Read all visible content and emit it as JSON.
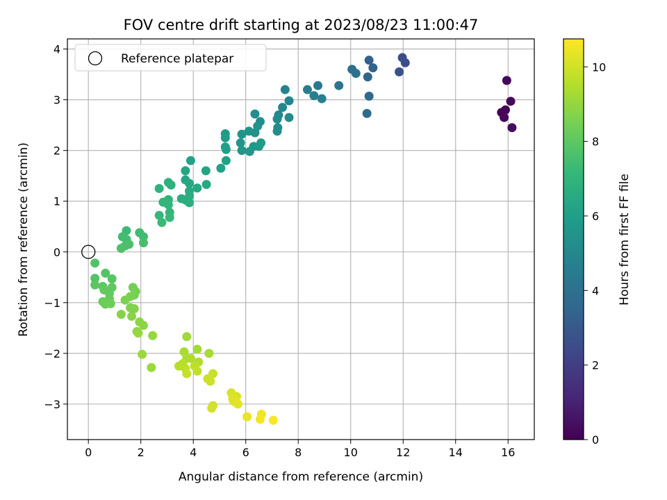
{
  "chart_data": {
    "type": "scatter",
    "title": "FOV centre drift starting at 2023/08/23 11:00:47",
    "xlabel": "Angular distance from reference (arcmin)",
    "ylabel": "Rotation from reference (arcmin)",
    "xlim": [
      -0.8,
      17.0
    ],
    "ylim": [
      -3.7,
      4.2
    ],
    "xticks": [
      0,
      2,
      4,
      6,
      8,
      10,
      12,
      14,
      16
    ],
    "yticks": [
      -3,
      -2,
      -1,
      0,
      1,
      2,
      3,
      4
    ],
    "grid": true,
    "legend": {
      "label": "Reference platepar",
      "placement": "top-left"
    },
    "reference_point": {
      "x": 0,
      "y": 0
    },
    "colorbar": {
      "label": "Hours from first FF file",
      "range": [
        0,
        10.75
      ],
      "ticks": [
        0,
        2,
        4,
        6,
        8,
        10
      ],
      "colormap": "viridis",
      "colors": [
        "#440154",
        "#482878",
        "#3e4989",
        "#31688e",
        "#26828e",
        "#1f9e89",
        "#35b779",
        "#6ece58",
        "#b5de2b",
        "#fde725"
      ]
    },
    "points": [
      {
        "x": 15.75,
        "y": 2.75,
        "c": 0.1
      },
      {
        "x": 15.9,
        "y": 2.8,
        "c": 0.15
      },
      {
        "x": 15.85,
        "y": 2.65,
        "c": 0.2
      },
      {
        "x": 15.95,
        "y": 3.38,
        "c": 0.25
      },
      {
        "x": 16.1,
        "y": 2.97,
        "c": 0.3
      },
      {
        "x": 16.15,
        "y": 2.45,
        "c": 0.35
      },
      {
        "x": 11.97,
        "y": 3.83,
        "c": 2.5
      },
      {
        "x": 12.08,
        "y": 3.73,
        "c": 2.6
      },
      {
        "x": 11.85,
        "y": 3.55,
        "c": 2.7
      },
      {
        "x": 10.7,
        "y": 3.78,
        "c": 3.3
      },
      {
        "x": 10.85,
        "y": 3.63,
        "c": 3.4
      },
      {
        "x": 10.65,
        "y": 3.45,
        "c": 3.5
      },
      {
        "x": 10.7,
        "y": 3.07,
        "c": 3.6
      },
      {
        "x": 10.62,
        "y": 2.73,
        "c": 3.7
      },
      {
        "x": 10.05,
        "y": 3.6,
        "c": 3.9
      },
      {
        "x": 10.2,
        "y": 3.52,
        "c": 4.0
      },
      {
        "x": 9.55,
        "y": 3.28,
        "c": 4.2
      },
      {
        "x": 8.75,
        "y": 3.28,
        "c": 4.4
      },
      {
        "x": 8.35,
        "y": 3.2,
        "c": 4.5
      },
      {
        "x": 8.6,
        "y": 3.08,
        "c": 4.6
      },
      {
        "x": 8.9,
        "y": 3.02,
        "c": 4.7
      },
      {
        "x": 7.5,
        "y": 3.2,
        "c": 4.8
      },
      {
        "x": 7.65,
        "y": 2.98,
        "c": 4.9
      },
      {
        "x": 7.4,
        "y": 2.85,
        "c": 5.0
      },
      {
        "x": 7.25,
        "y": 2.7,
        "c": 5.05
      },
      {
        "x": 7.2,
        "y": 2.62,
        "c": 5.1
      },
      {
        "x": 7.65,
        "y": 2.65,
        "c": 5.15
      },
      {
        "x": 7.22,
        "y": 2.45,
        "c": 5.2
      },
      {
        "x": 7.2,
        "y": 2.38,
        "c": 5.25
      },
      {
        "x": 6.35,
        "y": 2.72,
        "c": 5.3
      },
      {
        "x": 6.55,
        "y": 2.57,
        "c": 5.35
      },
      {
        "x": 6.45,
        "y": 2.48,
        "c": 5.4
      },
      {
        "x": 6.35,
        "y": 2.35,
        "c": 5.45
      },
      {
        "x": 6.12,
        "y": 2.38,
        "c": 5.5
      },
      {
        "x": 5.85,
        "y": 2.32,
        "c": 5.55
      },
      {
        "x": 5.8,
        "y": 2.15,
        "c": 5.6
      },
      {
        "x": 5.85,
        "y": 2.0,
        "c": 5.65
      },
      {
        "x": 6.15,
        "y": 1.98,
        "c": 5.7
      },
      {
        "x": 6.3,
        "y": 2.08,
        "c": 5.75
      },
      {
        "x": 6.5,
        "y": 2.08,
        "c": 5.8
      },
      {
        "x": 6.58,
        "y": 2.15,
        "c": 5.85
      },
      {
        "x": 5.22,
        "y": 2.33,
        "c": 5.9
      },
      {
        "x": 5.22,
        "y": 2.25,
        "c": 5.95
      },
      {
        "x": 5.22,
        "y": 2.07,
        "c": 6.0
      },
      {
        "x": 5.25,
        "y": 2.02,
        "c": 6.05
      },
      {
        "x": 5.25,
        "y": 1.8,
        "c": 6.1
      },
      {
        "x": 5.05,
        "y": 1.65,
        "c": 6.15
      },
      {
        "x": 3.9,
        "y": 1.8,
        "c": 6.2
      },
      {
        "x": 4.48,
        "y": 1.6,
        "c": 6.25
      },
      {
        "x": 3.7,
        "y": 1.6,
        "c": 6.3
      },
      {
        "x": 3.7,
        "y": 1.42,
        "c": 6.35
      },
      {
        "x": 3.85,
        "y": 1.35,
        "c": 6.4
      },
      {
        "x": 4.5,
        "y": 1.33,
        "c": 6.45
      },
      {
        "x": 4.15,
        "y": 1.26,
        "c": 6.5
      },
      {
        "x": 3.85,
        "y": 1.2,
        "c": 6.55
      },
      {
        "x": 3.85,
        "y": 1.1,
        "c": 6.6
      },
      {
        "x": 3.55,
        "y": 1.05,
        "c": 6.65
      },
      {
        "x": 3.72,
        "y": 1.02,
        "c": 6.7
      },
      {
        "x": 3.85,
        "y": 0.97,
        "c": 6.75
      },
      {
        "x": 3.05,
        "y": 1.37,
        "c": 6.8
      },
      {
        "x": 3.15,
        "y": 1.32,
        "c": 6.85
      },
      {
        "x": 2.7,
        "y": 1.25,
        "c": 6.9
      },
      {
        "x": 3.05,
        "y": 1.03,
        "c": 6.95
      },
      {
        "x": 2.85,
        "y": 0.98,
        "c": 7.0
      },
      {
        "x": 3.05,
        "y": 0.93,
        "c": 7.05
      },
      {
        "x": 3.1,
        "y": 0.78,
        "c": 7.1
      },
      {
        "x": 2.7,
        "y": 0.72,
        "c": 7.15
      },
      {
        "x": 3.1,
        "y": 0.68,
        "c": 7.2
      },
      {
        "x": 2.8,
        "y": 0.58,
        "c": 7.25
      },
      {
        "x": 1.45,
        "y": 0.42,
        "c": 7.3
      },
      {
        "x": 1.95,
        "y": 0.38,
        "c": 7.35
      },
      {
        "x": 2.1,
        "y": 0.3,
        "c": 7.4
      },
      {
        "x": 1.3,
        "y": 0.3,
        "c": 7.45
      },
      {
        "x": 1.45,
        "y": 0.25,
        "c": 7.5
      },
      {
        "x": 2.1,
        "y": 0.18,
        "c": 7.55
      },
      {
        "x": 1.55,
        "y": 0.15,
        "c": 7.6
      },
      {
        "x": 1.4,
        "y": 0.12,
        "c": 7.65
      },
      {
        "x": 1.25,
        "y": 0.07,
        "c": 7.7
      },
      {
        "x": 0.25,
        "y": -0.22,
        "c": 7.75
      },
      {
        "x": 0.65,
        "y": -0.42,
        "c": 7.8
      },
      {
        "x": 0.25,
        "y": -0.52,
        "c": 7.85
      },
      {
        "x": 0.9,
        "y": -0.53,
        "c": 7.9
      },
      {
        "x": 0.25,
        "y": -0.65,
        "c": 7.95
      },
      {
        "x": 0.55,
        "y": -0.68,
        "c": 8.0
      },
      {
        "x": 0.9,
        "y": -0.7,
        "c": 8.05
      },
      {
        "x": 0.6,
        "y": -0.75,
        "c": 8.1
      },
      {
        "x": 0.8,
        "y": -0.82,
        "c": 8.15
      },
      {
        "x": 0.8,
        "y": -0.92,
        "c": 8.2
      },
      {
        "x": 0.55,
        "y": -0.98,
        "c": 8.25
      },
      {
        "x": 0.65,
        "y": -1.03,
        "c": 8.3
      },
      {
        "x": 0.85,
        "y": -1.02,
        "c": 8.35
      },
      {
        "x": 1.7,
        "y": -0.7,
        "c": 8.4
      },
      {
        "x": 1.8,
        "y": -0.78,
        "c": 8.45
      },
      {
        "x": 1.75,
        "y": -0.85,
        "c": 8.5
      },
      {
        "x": 1.6,
        "y": -0.88,
        "c": 8.55
      },
      {
        "x": 1.4,
        "y": -0.95,
        "c": 8.6
      },
      {
        "x": 1.6,
        "y": -1.1,
        "c": 8.65
      },
      {
        "x": 1.75,
        "y": -1.12,
        "c": 8.7
      },
      {
        "x": 1.25,
        "y": -1.23,
        "c": 8.75
      },
      {
        "x": 1.65,
        "y": -1.27,
        "c": 8.8
      },
      {
        "x": 1.95,
        "y": -1.38,
        "c": 8.85
      },
      {
        "x": 2.1,
        "y": -1.45,
        "c": 8.9
      },
      {
        "x": 1.85,
        "y": -1.57,
        "c": 8.95
      },
      {
        "x": 1.9,
        "y": -1.6,
        "c": 9.0
      },
      {
        "x": 2.45,
        "y": -1.65,
        "c": 9.05
      },
      {
        "x": 2.05,
        "y": -2.02,
        "c": 9.1
      },
      {
        "x": 2.4,
        "y": -2.28,
        "c": 9.15
      },
      {
        "x": 3.75,
        "y": -1.67,
        "c": 9.2
      },
      {
        "x": 4.15,
        "y": -1.92,
        "c": 9.25
      },
      {
        "x": 4.6,
        "y": -2.0,
        "c": 9.3
      },
      {
        "x": 3.65,
        "y": -1.97,
        "c": 9.35
      },
      {
        "x": 3.75,
        "y": -2.1,
        "c": 9.4
      },
      {
        "x": 3.9,
        "y": -2.1,
        "c": 9.45
      },
      {
        "x": 4.2,
        "y": -2.17,
        "c": 9.5
      },
      {
        "x": 3.6,
        "y": -2.2,
        "c": 9.55
      },
      {
        "x": 3.45,
        "y": -2.25,
        "c": 9.6
      },
      {
        "x": 4.05,
        "y": -2.25,
        "c": 9.65
      },
      {
        "x": 3.7,
        "y": -2.3,
        "c": 9.7
      },
      {
        "x": 4.15,
        "y": -2.35,
        "c": 9.75
      },
      {
        "x": 3.75,
        "y": -2.4,
        "c": 9.8
      },
      {
        "x": 4.75,
        "y": -2.4,
        "c": 9.85
      },
      {
        "x": 4.55,
        "y": -2.5,
        "c": 9.9
      },
      {
        "x": 4.65,
        "y": -2.55,
        "c": 9.95
      },
      {
        "x": 4.75,
        "y": -3.03,
        "c": 10.0
      },
      {
        "x": 4.7,
        "y": -3.08,
        "c": 10.05
      },
      {
        "x": 5.45,
        "y": -2.78,
        "c": 10.1
      },
      {
        "x": 5.65,
        "y": -2.85,
        "c": 10.15
      },
      {
        "x": 5.5,
        "y": -2.9,
        "c": 10.2
      },
      {
        "x": 5.55,
        "y": -2.95,
        "c": 10.25
      },
      {
        "x": 5.7,
        "y": -3.0,
        "c": 10.3
      },
      {
        "x": 6.05,
        "y": -3.25,
        "c": 10.4
      },
      {
        "x": 6.6,
        "y": -3.2,
        "c": 10.5
      },
      {
        "x": 6.55,
        "y": -3.3,
        "c": 10.6
      },
      {
        "x": 7.05,
        "y": -3.32,
        "c": 10.7
      }
    ]
  }
}
